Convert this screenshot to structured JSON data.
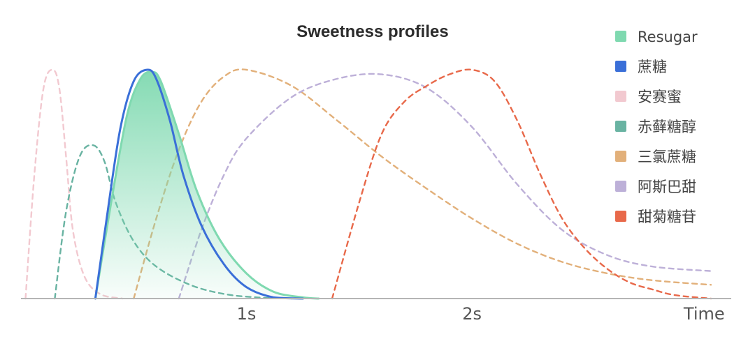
{
  "chart_data": {
    "type": "area",
    "title": "Sweetness profiles",
    "xlabel": "Time",
    "ylabel": "",
    "x_unit": "s",
    "xlim": [
      0,
      3.15
    ],
    "ylim": [
      0,
      1
    ],
    "x_ticks": [
      {
        "value": 1,
        "label": "1s"
      },
      {
        "value": 2,
        "label": "2s"
      },
      {
        "value": 3.03,
        "label": "Time"
      }
    ],
    "grid": false,
    "legend_position": "top-right",
    "series": [
      {
        "name": "Resugar",
        "color": "#7fd9b0",
        "style": "filled",
        "x": [
          0.33,
          0.4,
          0.47,
          0.53,
          0.58,
          0.62,
          0.7,
          0.78,
          0.88,
          1.0,
          1.12,
          1.25,
          1.32
        ],
        "y": [
          0.0,
          0.42,
          0.8,
          0.96,
          0.99,
          0.95,
          0.72,
          0.47,
          0.26,
          0.11,
          0.03,
          0.005,
          0.0
        ]
      },
      {
        "name": "蔗糖",
        "color": "#3a6fd8",
        "style": "solid",
        "x": [
          0.33,
          0.38,
          0.44,
          0.5,
          0.56,
          0.6,
          0.66,
          0.72,
          0.8,
          0.9,
          1.0,
          1.12,
          1.25
        ],
        "y": [
          0.0,
          0.35,
          0.74,
          0.95,
          1.0,
          0.96,
          0.78,
          0.54,
          0.32,
          0.15,
          0.05,
          0.005,
          0.0
        ]
      },
      {
        "name": "安赛蜜",
        "color": "#f2c9d0",
        "style": "dashed",
        "x": [
          0.02,
          0.06,
          0.1,
          0.14,
          0.17,
          0.2,
          0.23,
          0.28,
          0.35,
          0.45
        ],
        "y": [
          0.0,
          0.55,
          0.92,
          1.0,
          0.92,
          0.62,
          0.3,
          0.1,
          0.02,
          0.0
        ]
      },
      {
        "name": "赤藓糖醇",
        "color": "#69b3a2",
        "style": "dashed",
        "x": [
          0.15,
          0.2,
          0.26,
          0.32,
          0.37,
          0.42,
          0.5,
          0.6,
          0.75,
          0.9,
          1.05,
          1.2
        ],
        "y": [
          0.0,
          0.38,
          0.62,
          0.67,
          0.6,
          0.42,
          0.25,
          0.14,
          0.06,
          0.02,
          0.005,
          0.0
        ]
      },
      {
        "name": "三氯蔗糖",
        "color": "#e2b07a",
        "style": "dashed",
        "x": [
          0.5,
          0.6,
          0.7,
          0.8,
          0.9,
          1.0,
          1.2,
          1.4,
          1.6,
          1.8,
          2.0,
          2.2,
          2.4,
          2.6,
          2.8,
          3.06
        ],
        "y": [
          0.0,
          0.35,
          0.65,
          0.86,
          0.97,
          1.0,
          0.93,
          0.78,
          0.62,
          0.48,
          0.35,
          0.24,
          0.16,
          0.11,
          0.08,
          0.06
        ]
      },
      {
        "name": "阿斯巴甜",
        "color": "#bdb0d8",
        "style": "dashed",
        "x": [
          0.7,
          0.8,
          0.9,
          1.0,
          1.2,
          1.4,
          1.6,
          1.8,
          2.0,
          2.2,
          2.4,
          2.6,
          2.8,
          3.06
        ],
        "y": [
          0.0,
          0.3,
          0.54,
          0.7,
          0.88,
          0.96,
          0.98,
          0.92,
          0.75,
          0.5,
          0.3,
          0.19,
          0.14,
          0.12
        ]
      },
      {
        "name": "甜菊糖苷",
        "color": "#e8694a",
        "style": "dashed",
        "x": [
          1.38,
          1.5,
          1.6,
          1.7,
          1.8,
          1.9,
          2.0,
          2.1,
          2.2,
          2.3,
          2.4,
          2.5,
          2.6,
          2.7,
          2.8,
          2.9,
          3.06
        ],
        "y": [
          0.0,
          0.42,
          0.72,
          0.86,
          0.93,
          0.98,
          1.0,
          0.95,
          0.78,
          0.55,
          0.35,
          0.22,
          0.13,
          0.07,
          0.04,
          0.015,
          0.0
        ]
      }
    ]
  }
}
